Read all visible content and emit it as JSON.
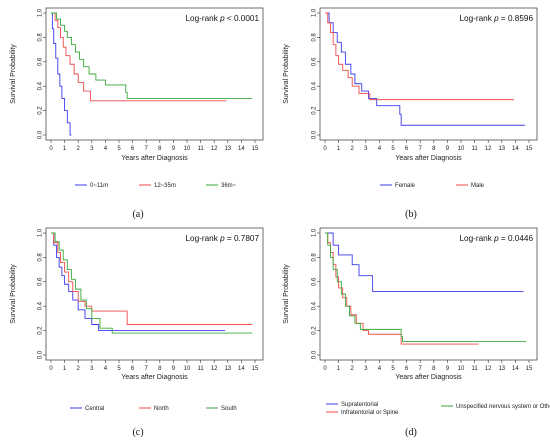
{
  "chart_data": [
    {
      "type": "line",
      "panel_label": "(a)",
      "xlabel": "Years after Diagnosis",
      "ylabel": "Survival Probability",
      "xlim": [
        0,
        15
      ],
      "ylim": [
        0,
        1
      ],
      "xticks": [
        "0",
        "1",
        "2",
        "3",
        "4",
        "5",
        "6",
        "7",
        "8",
        "9",
        "10",
        "11",
        "12",
        "13",
        "14",
        "15"
      ],
      "yticks": [
        "0.0",
        "0.2",
        "0.4",
        "0.6",
        "0.8",
        "1.0"
      ],
      "annotation": {
        "prefix": "Log-rank ",
        "p": "p",
        "rest": " < 0.0001"
      },
      "legend_position": "bottom",
      "series": [
        {
          "name": "0~11m",
          "color": "#3b3bf0",
          "steps": [
            [
              0,
              1.0
            ],
            [
              0.1,
              0.87
            ],
            [
              0.2,
              0.75
            ],
            [
              0.35,
              0.63
            ],
            [
              0.5,
              0.5
            ],
            [
              0.65,
              0.4
            ],
            [
              0.8,
              0.3
            ],
            [
              1.0,
              0.2
            ],
            [
              1.2,
              0.1
            ],
            [
              1.4,
              0.0
            ]
          ],
          "end": 1.5
        },
        {
          "name": "12~35m",
          "color": "#f04a4a",
          "steps": [
            [
              0,
              1.0
            ],
            [
              0.3,
              0.94
            ],
            [
              0.5,
              0.88
            ],
            [
              0.7,
              0.8
            ],
            [
              0.9,
              0.72
            ],
            [
              1.1,
              0.65
            ],
            [
              1.4,
              0.58
            ],
            [
              1.7,
              0.5
            ],
            [
              2.0,
              0.43
            ],
            [
              2.4,
              0.36
            ],
            [
              2.9,
              0.28
            ]
          ],
          "end": 12.9
        },
        {
          "name": "36m~",
          "color": "#3aaa3a",
          "steps": [
            [
              0,
              1.0
            ],
            [
              0.4,
              0.95
            ],
            [
              0.7,
              0.9
            ],
            [
              1.0,
              0.85
            ],
            [
              1.2,
              0.8
            ],
            [
              1.5,
              0.74
            ],
            [
              1.8,
              0.68
            ],
            [
              2.1,
              0.62
            ],
            [
              2.4,
              0.56
            ],
            [
              2.8,
              0.5
            ],
            [
              3.3,
              0.45
            ],
            [
              4.0,
              0.41
            ],
            [
              5.5,
              0.35
            ],
            [
              5.6,
              0.3
            ]
          ],
          "end": 14.8
        }
      ]
    },
    {
      "type": "line",
      "panel_label": "(b)",
      "xlabel": "Years after Diagnosis",
      "ylabel": "Survival Probability",
      "xlim": [
        0,
        15
      ],
      "ylim": [
        0,
        1
      ],
      "xticks": [
        "0",
        "1",
        "2",
        "3",
        "4",
        "5",
        "6",
        "7",
        "8",
        "9",
        "10",
        "11",
        "12",
        "13",
        "14",
        "15"
      ],
      "yticks": [
        "0.0",
        "0.2",
        "0.4",
        "0.6",
        "0.8",
        "1.0"
      ],
      "annotation": {
        "prefix": "Log-rank ",
        "p": "p",
        "rest": " = 0.8596"
      },
      "legend_position": "bottom",
      "series": [
        {
          "name": "Female",
          "color": "#3b3bf0",
          "steps": [
            [
              0,
              1.0
            ],
            [
              0.3,
              0.92
            ],
            [
              0.6,
              0.84
            ],
            [
              0.9,
              0.76
            ],
            [
              1.2,
              0.68
            ],
            [
              1.5,
              0.58
            ],
            [
              1.9,
              0.5
            ],
            [
              2.2,
              0.42
            ],
            [
              2.7,
              0.36
            ],
            [
              3.2,
              0.3
            ],
            [
              3.8,
              0.24
            ],
            [
              5.5,
              0.17
            ],
            [
              5.6,
              0.08
            ]
          ],
          "end": 14.7
        },
        {
          "name": "Male",
          "color": "#f04a4a",
          "steps": [
            [
              0,
              1.0
            ],
            [
              0.2,
              0.92
            ],
            [
              0.4,
              0.84
            ],
            [
              0.6,
              0.74
            ],
            [
              0.8,
              0.65
            ],
            [
              1.0,
              0.58
            ],
            [
              1.3,
              0.53
            ],
            [
              1.7,
              0.47
            ],
            [
              2.0,
              0.4
            ],
            [
              2.5,
              0.34
            ],
            [
              3.3,
              0.29
            ]
          ],
          "end": 13.9
        }
      ]
    },
    {
      "type": "line",
      "panel_label": "(c)",
      "xlabel": "Years after Diagnosis",
      "ylabel": "Survival Probability",
      "xlim": [
        0,
        15
      ],
      "ylim": [
        0,
        1
      ],
      "xticks": [
        "0",
        "1",
        "2",
        "3",
        "4",
        "5",
        "6",
        "7",
        "8",
        "9",
        "10",
        "11",
        "12",
        "13",
        "14",
        "15"
      ],
      "yticks": [
        "0.0",
        "0.2",
        "0.4",
        "0.6",
        "0.8",
        "1.0"
      ],
      "annotation": {
        "prefix": "Log-rank ",
        "p": "p",
        "rest": " = 0.7807"
      },
      "legend_position": "bottom",
      "series": [
        {
          "name": "Central",
          "color": "#3b3bf0",
          "steps": [
            [
              0,
              1.0
            ],
            [
              0.2,
              0.9
            ],
            [
              0.4,
              0.8
            ],
            [
              0.6,
              0.72
            ],
            [
              0.8,
              0.65
            ],
            [
              1.0,
              0.58
            ],
            [
              1.3,
              0.52
            ],
            [
              1.6,
              0.45
            ],
            [
              2.0,
              0.37
            ],
            [
              2.5,
              0.3
            ],
            [
              3.0,
              0.25
            ],
            [
              3.5,
              0.2
            ]
          ],
          "end": 12.8
        },
        {
          "name": "North",
          "color": "#f04a4a",
          "steps": [
            [
              0,
              1.0
            ],
            [
              0.2,
              0.92
            ],
            [
              0.5,
              0.84
            ],
            [
              0.7,
              0.76
            ],
            [
              1.0,
              0.68
            ],
            [
              1.3,
              0.6
            ],
            [
              1.6,
              0.52
            ],
            [
              2.0,
              0.44
            ],
            [
              2.5,
              0.4
            ],
            [
              3.0,
              0.36
            ],
            [
              5.6,
              0.25
            ]
          ],
          "end": 14.8
        },
        {
          "name": "South",
          "color": "#3aaa3a",
          "steps": [
            [
              0,
              1.0
            ],
            [
              0.3,
              0.93
            ],
            [
              0.6,
              0.86
            ],
            [
              0.9,
              0.78
            ],
            [
              1.2,
              0.7
            ],
            [
              1.5,
              0.62
            ],
            [
              1.8,
              0.54
            ],
            [
              2.2,
              0.45
            ],
            [
              2.6,
              0.38
            ],
            [
              3.0,
              0.3
            ],
            [
              3.6,
              0.22
            ],
            [
              4.5,
              0.18
            ]
          ],
          "end": 14.8
        }
      ]
    },
    {
      "type": "line",
      "panel_label": "(d)",
      "xlabel": "Years after Diagnosis",
      "ylabel": "Survival Probability",
      "xlim": [
        0,
        15
      ],
      "ylim": [
        0,
        1
      ],
      "xticks": [
        "0",
        "1",
        "2",
        "3",
        "4",
        "5",
        "6",
        "7",
        "8",
        "9",
        "10",
        "11",
        "12",
        "13",
        "14",
        "15"
      ],
      "yticks": [
        "0.0",
        "0.2",
        "0.4",
        "0.6",
        "0.8",
        "1.0"
      ],
      "annotation": {
        "prefix": "Log-rank ",
        "p": "p",
        "rest": " = 0.0446"
      },
      "legend_position": "bottom",
      "series": [
        {
          "name": "Supratentorial",
          "color": "#3b3bf0",
          "steps": [
            [
              0,
              1.0
            ],
            [
              0.6,
              0.9
            ],
            [
              1.0,
              0.82
            ],
            [
              2.0,
              0.74
            ],
            [
              2.5,
              0.65
            ],
            [
              3.5,
              0.52
            ]
          ],
          "end": 14.6
        },
        {
          "name": "Infratentorial or Spine",
          "color": "#f04a4a",
          "steps": [
            [
              0,
              1.0
            ],
            [
              0.2,
              0.92
            ],
            [
              0.4,
              0.84
            ],
            [
              0.6,
              0.74
            ],
            [
              0.8,
              0.64
            ],
            [
              1.0,
              0.55
            ],
            [
              1.3,
              0.47
            ],
            [
              1.6,
              0.4
            ],
            [
              1.9,
              0.33
            ],
            [
              2.3,
              0.26
            ],
            [
              2.8,
              0.2
            ],
            [
              3.2,
              0.17
            ],
            [
              5.6,
              0.09
            ]
          ],
          "end": 11.3
        },
        {
          "name": "Unspecified nervous system or Others",
          "color": "#3aaa3a",
          "steps": [
            [
              0,
              1.0
            ],
            [
              0.2,
              0.9
            ],
            [
              0.4,
              0.8
            ],
            [
              0.6,
              0.7
            ],
            [
              0.9,
              0.6
            ],
            [
              1.2,
              0.5
            ],
            [
              1.5,
              0.4
            ],
            [
              1.8,
              0.32
            ],
            [
              2.2,
              0.26
            ],
            [
              2.6,
              0.21
            ],
            [
              5.6,
              0.15
            ],
            [
              5.7,
              0.11
            ]
          ],
          "end": 14.8
        }
      ]
    }
  ]
}
